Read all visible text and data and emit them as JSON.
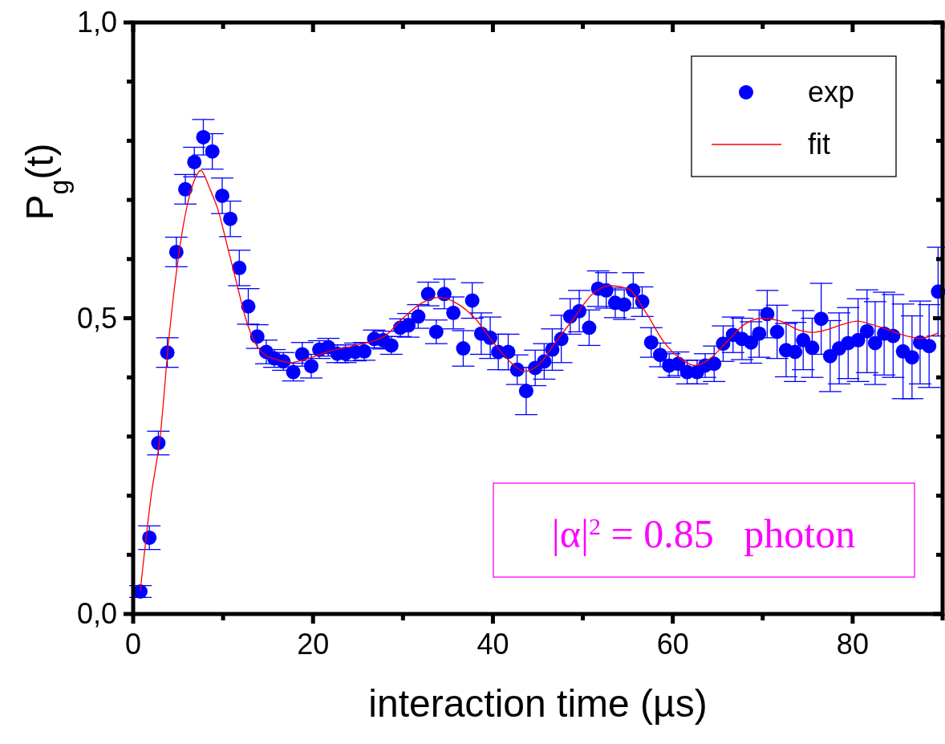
{
  "chart_data": {
    "type": "scatter",
    "xlabel": "interaction time (µs)",
    "ylabel": "P$_{g}$(t)",
    "xlim": [
      0,
      90
    ],
    "ylim": [
      0,
      1
    ],
    "xticks": [
      0,
      {
        "value": 10,
        "label": null
      },
      20,
      {
        "value": 30,
        "label": null
      },
      40,
      {
        "value": 50,
        "label": null
      },
      60,
      {
        "value": 70,
        "label": null
      },
      80,
      {
        "value": 90,
        "label": null
      }
    ],
    "yticks": [
      {
        "value": 0,
        "label": "0,0"
      },
      {
        "value": 0.1,
        "label": null
      },
      {
        "value": 0.2,
        "label": null
      },
      {
        "value": 0.3,
        "label": null
      },
      {
        "value": 0.4,
        "label": null
      },
      {
        "value": 0.5,
        "label": "0,5"
      },
      {
        "value": 0.6,
        "label": null
      },
      {
        "value": 0.7,
        "label": null
      },
      {
        "value": 0.8,
        "label": null
      },
      {
        "value": 0.9,
        "label": null
      },
      {
        "value": 1,
        "label": "1,0"
      }
    ],
    "grid": false,
    "legend": "top right",
    "marker": "circle",
    "annotations": [
      "|α|$^{2}$ = 0.85   photon"
    ],
    "series": [
      {
        "name": "exp",
        "type": "scatter",
        "color": "#0000ff",
        "x": [
          0.8,
          1.8,
          2.8,
          3.8,
          4.8,
          5.8,
          6.8,
          7.8,
          8.8,
          9.9,
          10.8,
          11.8,
          12.8,
          13.8,
          14.8,
          15.7,
          16.7,
          17.8,
          18.8,
          19.8,
          20.7,
          21.7,
          22.7,
          23.6,
          24.7,
          25.7,
          26.8,
          27.8,
          28.7,
          29.7,
          30.6,
          31.7,
          32.8,
          33.7,
          34.6,
          35.6,
          36.7,
          37.7,
          38.7,
          39.7,
          40.6,
          41.7,
          42.7,
          43.7,
          44.7,
          45.7,
          46.6,
          47.6,
          48.6,
          49.6,
          50.7,
          51.7,
          52.6,
          53.6,
          54.6,
          55.6,
          56.6,
          57.6,
          58.6,
          59.6,
          60.6,
          61.6,
          62.7,
          63.6,
          64.6,
          65.6,
          66.7,
          67.7,
          68.7,
          69.6,
          70.5,
          71.6,
          72.6,
          73.6,
          74.5,
          75.5,
          76.5,
          77.5,
          78.5,
          79.5,
          80.6,
          81.6,
          82.5,
          83.5,
          84.5,
          85.6,
          86.6,
          87.5,
          88.5,
          89.5
        ],
        "values": [
          0.038,
          0.129,
          0.289,
          0.442,
          0.612,
          0.718,
          0.764,
          0.806,
          0.782,
          0.707,
          0.668,
          0.585,
          0.52,
          0.469,
          0.443,
          0.432,
          0.427,
          0.409,
          0.439,
          0.419,
          0.447,
          0.451,
          0.44,
          0.44,
          0.443,
          0.444,
          0.465,
          0.463,
          0.454,
          0.484,
          0.488,
          0.503,
          0.541,
          0.477,
          0.541,
          0.509,
          0.449,
          0.53,
          0.474,
          0.467,
          0.443,
          0.443,
          0.413,
          0.377,
          0.416,
          0.427,
          0.447,
          0.465,
          0.503,
          0.512,
          0.484,
          0.55,
          0.547,
          0.526,
          0.523,
          0.547,
          0.528,
          0.459,
          0.438,
          0.42,
          0.423,
          0.409,
          0.409,
          0.42,
          0.423,
          0.457,
          0.472,
          0.465,
          0.459,
          0.474,
          0.507,
          0.477,
          0.446,
          0.443,
          0.463,
          0.45,
          0.499,
          0.436,
          0.449,
          0.458,
          0.463,
          0.478,
          0.458,
          0.474,
          0.47,
          0.444,
          0.434,
          0.459,
          0.453,
          0.545
        ],
        "errors": [
          0.01,
          0.02,
          0.02,
          0.025,
          0.025,
          0.025,
          0.025,
          0.03,
          0.03,
          0.03,
          0.03,
          0.03,
          0.03,
          0.02,
          0.02,
          0.015,
          0.015,
          0.015,
          0.02,
          0.02,
          0.015,
          0.015,
          0.015,
          0.015,
          0.015,
          0.015,
          0.015,
          0.015,
          0.015,
          0.015,
          0.02,
          0.02,
          0.02,
          0.02,
          0.025,
          0.027,
          0.03,
          0.03,
          0.035,
          0.035,
          0.03,
          0.03,
          0.025,
          0.04,
          0.03,
          0.03,
          0.035,
          0.04,
          0.03,
          0.035,
          0.03,
          0.03,
          0.03,
          0.025,
          0.025,
          0.03,
          0.025,
          0.025,
          0.02,
          0.02,
          0.02,
          0.02,
          0.02,
          0.02,
          0.03,
          0.03,
          0.03,
          0.035,
          0.035,
          0.04,
          0.04,
          0.045,
          0.045,
          0.05,
          0.05,
          0.05,
          0.06,
          0.06,
          0.06,
          0.06,
          0.07,
          0.07,
          0.07,
          0.07,
          0.07,
          0.08,
          0.07,
          0.07,
          0.07,
          0.075
        ]
      },
      {
        "name": "fit",
        "type": "line",
        "color": "#ff0000",
        "marker": "none",
        "line_style": "solid",
        "x": [
          0.8,
          2,
          3,
          4,
          5,
          6,
          7,
          7.5,
          8.5,
          9.5,
          10.5,
          11.5,
          12.5,
          13.5,
          14.5,
          16,
          17.5,
          19,
          22,
          25,
          28,
          30,
          32,
          34,
          36,
          38,
          40,
          42,
          43.5,
          45,
          47,
          49,
          51,
          53,
          55,
          57,
          59,
          61,
          62.5,
          64,
          66,
          68,
          70,
          72,
          74,
          75.5,
          77,
          79,
          80.5,
          82,
          84,
          86,
          87.5,
          89.5
        ],
        "values": [
          0.04,
          0.2,
          0.3,
          0.47,
          0.6,
          0.69,
          0.74,
          0.75,
          0.72,
          0.68,
          0.62,
          0.56,
          0.5,
          0.46,
          0.44,
          0.43,
          0.425,
          0.43,
          0.445,
          0.455,
          0.47,
          0.5,
          0.525,
          0.535,
          0.525,
          0.5,
          0.46,
          0.425,
          0.41,
          0.42,
          0.46,
          0.5,
          0.54,
          0.555,
          0.55,
          0.51,
          0.46,
          0.43,
          0.42,
          0.43,
          0.46,
          0.49,
          0.5,
          0.495,
          0.48,
          0.476,
          0.48,
          0.49,
          0.495,
          0.49,
          0.48,
          0.47,
          0.466,
          0.475
        ]
      }
    ]
  }
}
